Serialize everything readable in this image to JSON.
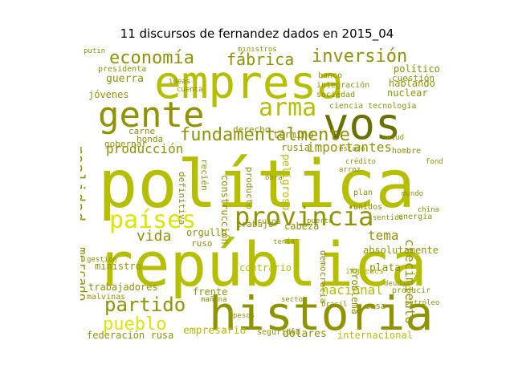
{
  "title": "11 discursos de fernandez dados en 2015_04",
  "colors": {
    "bright": "#c8d400",
    "lime": "#b5bf00",
    "olive": "#8f9400",
    "dark": "#6b7000",
    "yellow": "#dde600"
  },
  "words": [
    "política",
    "república",
    "historia",
    "empresa",
    "vos",
    "gente",
    "provincia",
    "países",
    "arma",
    "fundamentalmente",
    "inversión",
    "economía",
    "fábrica",
    "partido",
    "pueblo",
    "realidad",
    "producción",
    "importantes",
    "mercado",
    "vida",
    "crecimiento",
    "trabajadores",
    "tema",
    "nacional",
    "cabeza",
    "empresario",
    "dólares",
    "internacional",
    "federación rusa",
    "malvinas",
    "rusia",
    "hablando",
    "jóvenes",
    "guerra",
    "presidenta",
    "político",
    "cuestión",
    "nuclear",
    "contrario",
    "frente",
    "problema",
    "absolutamente",
    "energía",
    "ministro",
    "orgullo",
    "trabajo",
    "construcción",
    "definitiva",
    "producto",
    "ruso",
    "casa",
    "plata",
    "carne",
    "gobernar",
    "honda",
    "término",
    "derecho",
    "recién",
    "ciencia tecnología",
    "banco",
    "integración",
    "sociedad",
    "putin",
    "ministros",
    "cuenta",
    "peligroso",
    "rusos",
    "democracia",
    "ingleses",
    "unidos",
    "seguridad",
    "pesos",
    "producir",
    "sentido",
    "mundo",
    "plan",
    "mañana",
    "china",
    "hombre",
    "puerto",
    "deuda",
    "gestión",
    "brasil",
    "arroz",
    "ideas",
    "sector",
    "fondo",
    "obra",
    "petróleo",
    "tenía",
    "salud",
    "crédito",
    "estado"
  ]
}
